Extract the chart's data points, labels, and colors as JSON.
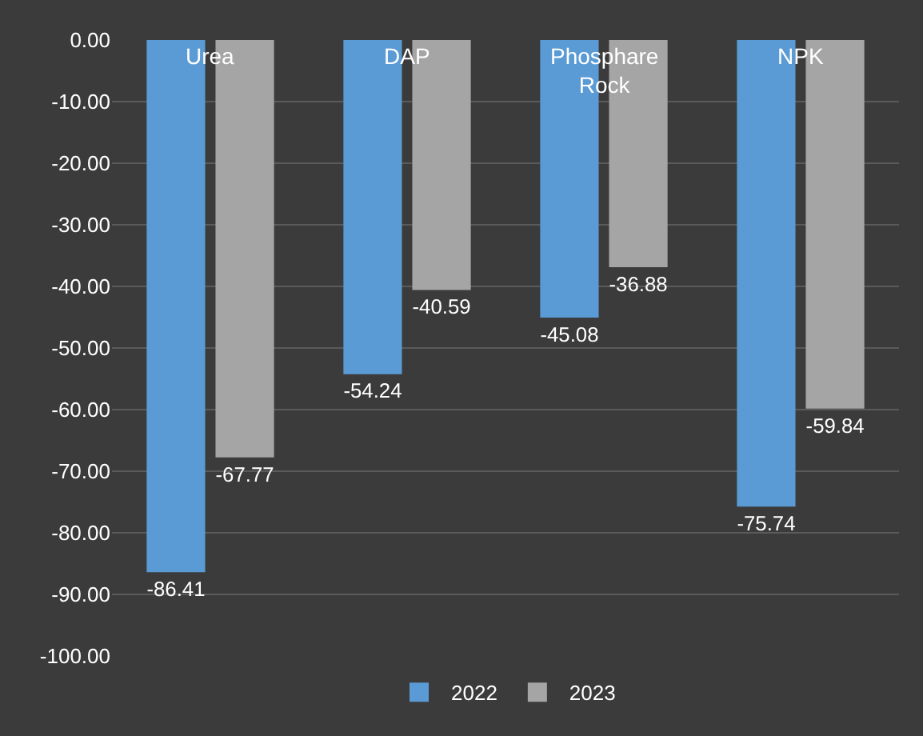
{
  "chart_data": {
    "type": "bar",
    "categories": [
      "Urea",
      "DAP",
      "Phosphare Rock",
      "NPK"
    ],
    "series": [
      {
        "name": "2022",
        "color": "#5b9bd5",
        "values": [
          -86.41,
          -54.24,
          -45.08,
          -75.74
        ]
      },
      {
        "name": "2023",
        "color": "#a5a5a5",
        "values": [
          -67.77,
          -40.59,
          -36.88,
          -59.84
        ]
      }
    ],
    "ylim": [
      -100,
      0
    ],
    "yticks": [
      {
        "value": 0,
        "label": "0.00"
      },
      {
        "value": -10,
        "label": "-10.00"
      },
      {
        "value": -20,
        "label": "-20.00"
      },
      {
        "value": -30,
        "label": "-30.00"
      },
      {
        "value": -40,
        "label": "-40.00"
      },
      {
        "value": -50,
        "label": "-50.00"
      },
      {
        "value": -60,
        "label": "-60.00"
      },
      {
        "value": -70,
        "label": "-70.00"
      },
      {
        "value": -80,
        "label": "-80.00"
      },
      {
        "value": -90,
        "label": "-90.00"
      },
      {
        "value": -100,
        "label": "-100.00"
      }
    ],
    "grid": "y",
    "legend": "bottom",
    "data_labels": true
  }
}
